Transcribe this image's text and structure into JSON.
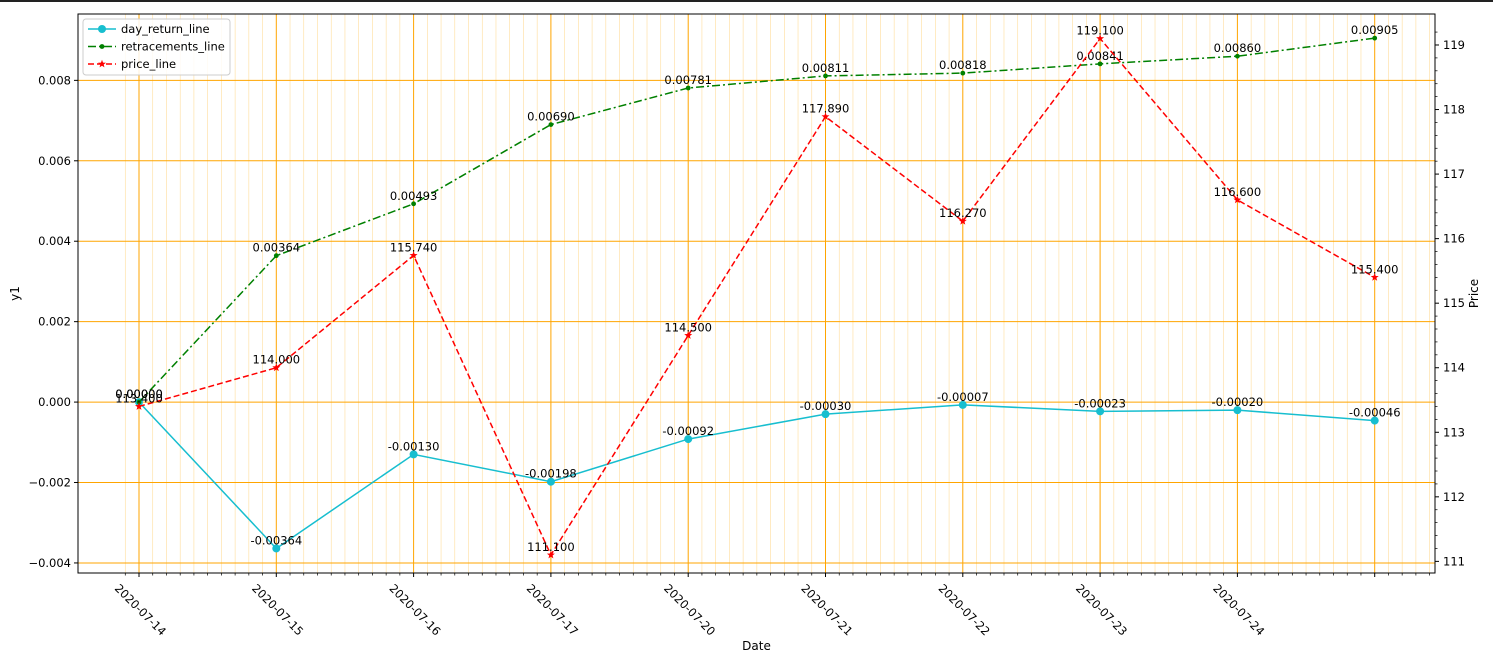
{
  "chart_data": {
    "type": "line",
    "title": "",
    "xlabel": "Date",
    "ylabel": "y1",
    "y2label": "Price",
    "categories": [
      "2020-07-14",
      "2020-07-15",
      "2020-07-16",
      "2020-07-17",
      "2020-07-20",
      "2020-07-21",
      "2020-07-22",
      "2020-07-23",
      "2020-07-24",
      ""
    ],
    "ylim": [
      -0.00425,
      0.00965
    ],
    "y2lim": [
      110.82,
      119.48
    ],
    "yticks": [
      "0.008",
      "0.006",
      "0.004",
      "0.002",
      "0.000",
      "−0.002",
      "−0.004"
    ],
    "y2ticks": [
      "119",
      "118",
      "117",
      "116",
      "115",
      "114",
      "113",
      "112",
      "111"
    ],
    "grid": true,
    "legend_position": "top-left",
    "series": [
      {
        "name": "day_return_line",
        "axis": "left",
        "color": "#17becf",
        "marker": "circle",
        "linestyle": "solid",
        "values": [
          0.0,
          -0.00364,
          -0.0013,
          -0.00198,
          -0.00092,
          -0.0003,
          -7e-05,
          -0.00023,
          -0.0002,
          -0.00046
        ],
        "labels": [
          "0.00000",
          "-0.00364",
          "-0.00130",
          "-0.00198",
          "-0.00092",
          "-0.00030",
          "-0.00007",
          "-0.00023",
          "-0.00020",
          "-0.00046"
        ]
      },
      {
        "name": "retracements_line",
        "axis": "left",
        "color": "#008000",
        "marker": "dot",
        "linestyle": "dashdot",
        "values": [
          0.0,
          0.00364,
          0.00493,
          0.0069,
          0.00781,
          0.00811,
          0.00818,
          0.00841,
          0.0086,
          0.00905
        ],
        "labels": [
          "0.00000",
          "0.00364",
          "0.00493",
          "0.00690",
          "0.00781",
          "0.00811",
          "0.00818",
          "0.00841",
          "0.00860",
          "0.00905"
        ]
      },
      {
        "name": "price_line",
        "axis": "right",
        "color": "#ff0000",
        "marker": "star",
        "linestyle": "dashed",
        "values": [
          113.4,
          114.0,
          115.74,
          111.1,
          114.5,
          117.89,
          116.27,
          119.1,
          116.6,
          115.4
        ],
        "labels": [
          "113.400",
          "114.000",
          "115.740",
          "111.100",
          "114.500",
          "117.890",
          "116.270",
          "119.100",
          "116.600",
          "115.400"
        ]
      }
    ]
  },
  "colors": {
    "grid_major": "#ffa500",
    "grid_minor": "#ffd27a"
  }
}
